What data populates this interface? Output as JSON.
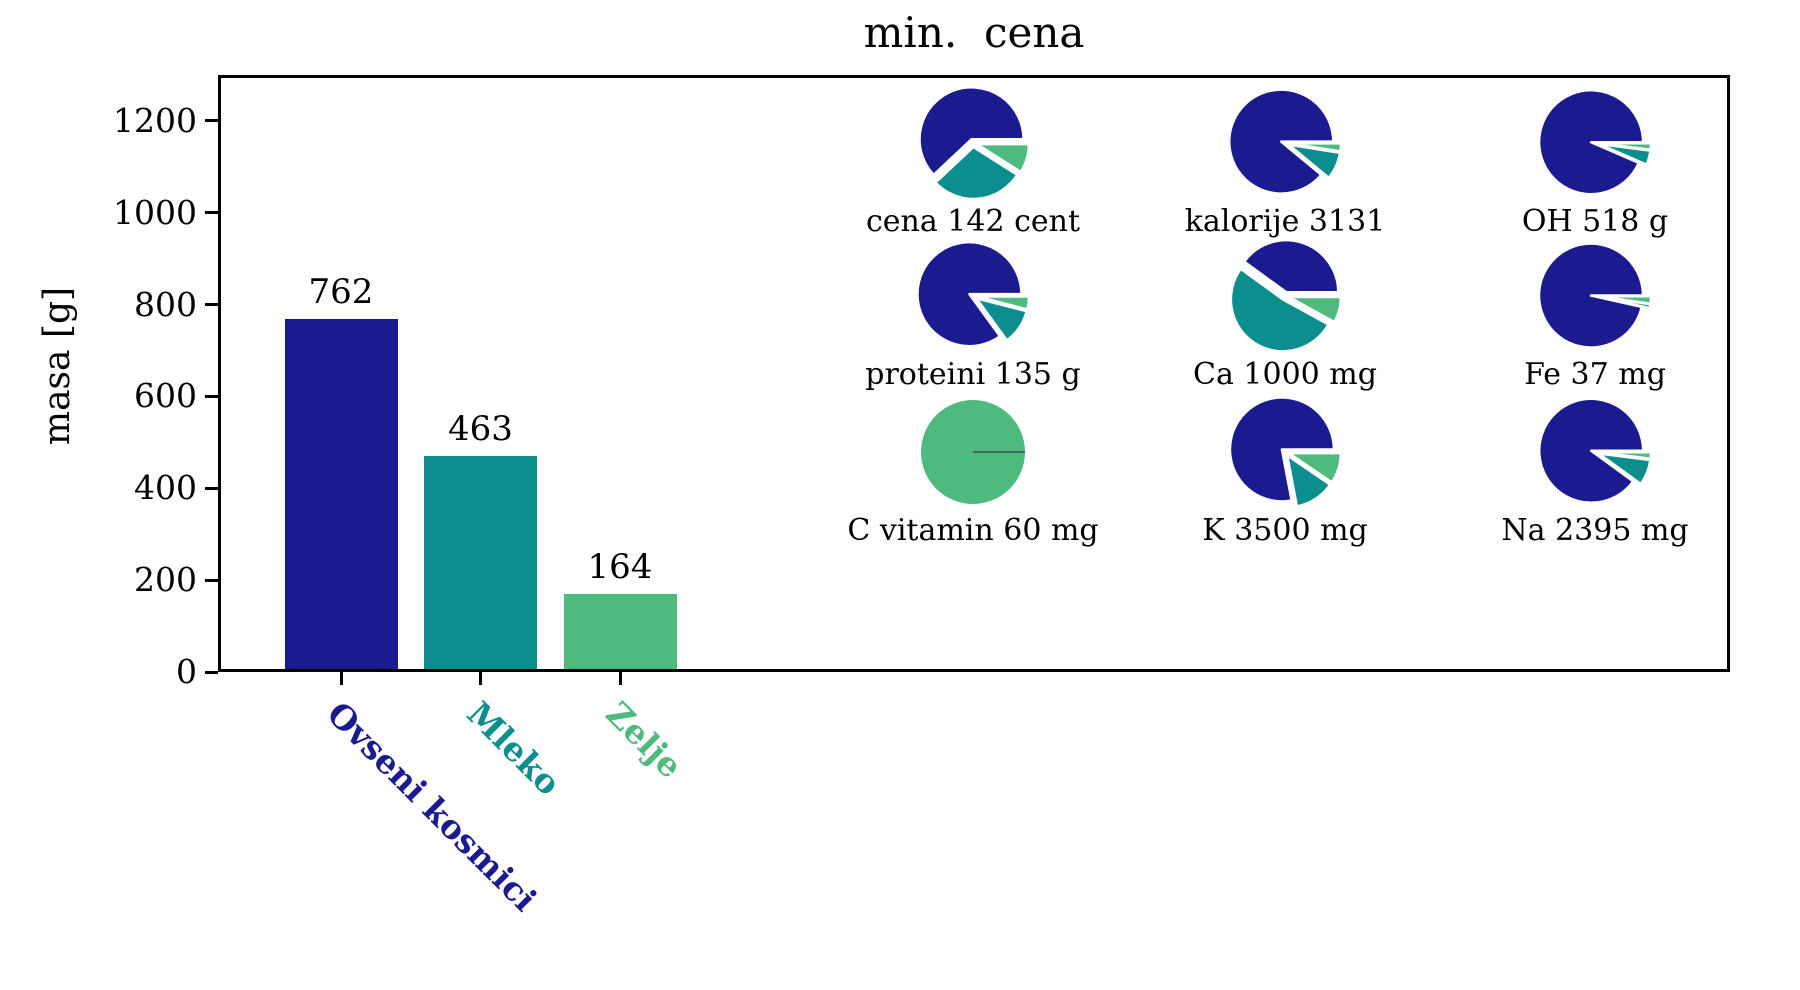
{
  "title": "min.  cena",
  "colors": {
    "navy": "#1b1b8f",
    "teal": "#0d8e8e",
    "green": "#4eba7d",
    "axis": "#000000",
    "background": "#ffffff",
    "zero_wedge_line": "#4a4a4a"
  },
  "series": [
    {
      "name": "Ovseni kosmici",
      "color": "#1b1b8f"
    },
    {
      "name": "Mleko",
      "color": "#0d8e8e"
    },
    {
      "name": "Zelje",
      "color": "#4eba7d"
    }
  ],
  "chart_data": [
    {
      "type": "bar",
      "title": "min.  cena",
      "categories": [
        "Ovseni kosmici",
        "Mleko",
        "Zelje"
      ],
      "values": [
        762,
        463,
        164
      ],
      "value_labels": [
        "762",
        "463",
        "164"
      ],
      "bar_colors": [
        "#1b1b8f",
        "#0d8e8e",
        "#4eba7d"
      ],
      "xlabel": "",
      "ylabel": "masa [g]",
      "yticks": [
        0,
        200,
        400,
        600,
        800,
        1000,
        1200
      ],
      "ylim": [
        0,
        1300
      ],
      "grid": false,
      "legend": "none"
    },
    {
      "type": "pie",
      "note": "3x3 grid of pies; slice order [Ovseni kosmici=navy, Mleko=teal, Zelje=green], counterclockwise from east",
      "slice_series": [
        "Ovseni kosmici",
        "Mleko",
        "Zelje"
      ],
      "pies": [
        {
          "label": "cena 142 cent",
          "total_value": 142,
          "unit": "cent",
          "fractions": [
            0.62,
            0.29,
            0.09
          ]
        },
        {
          "label": "kalorije 3131",
          "total_value": 3131,
          "unit": "",
          "fractions": [
            0.89,
            0.085,
            0.025
          ]
        },
        {
          "label": "OH 518 g",
          "total_value": 518,
          "unit": "g",
          "fractions": [
            0.935,
            0.045,
            0.02
          ]
        },
        {
          "label": "proteini 135 g",
          "total_value": 135,
          "unit": "g",
          "fractions": [
            0.85,
            0.11,
            0.04
          ]
        },
        {
          "label": "Ca 1000 mg",
          "total_value": 1000,
          "unit": "mg",
          "fractions": [
            0.4,
            0.52,
            0.08
          ]
        },
        {
          "label": "Fe 37 mg",
          "total_value": 37,
          "unit": "mg",
          "fractions": [
            0.965,
            0.012,
            0.023
          ]
        },
        {
          "label": "C vitamin 60 mg",
          "total_value": 60,
          "unit": "mg",
          "fractions": [
            0.0,
            0.0,
            1.0
          ]
        },
        {
          "label": "K 3500 mg",
          "total_value": 3500,
          "unit": "mg",
          "fractions": [
            0.78,
            0.125,
            0.095
          ]
        },
        {
          "label": "Na 2395 mg",
          "total_value": 2395,
          "unit": "mg",
          "fractions": [
            0.9,
            0.08,
            0.02
          ]
        }
      ]
    }
  ]
}
